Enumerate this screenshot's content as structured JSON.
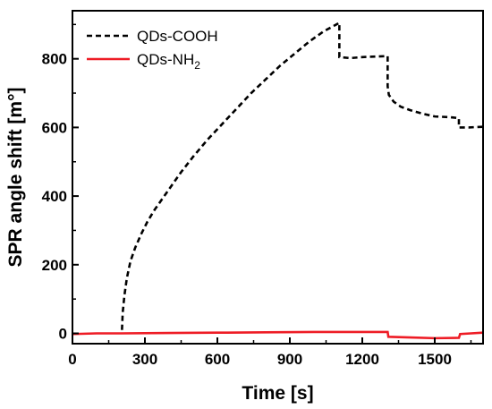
{
  "chart_data": {
    "type": "line",
    "title": "",
    "xlabel": "Time [s]",
    "ylabel": "SPR angle shift [m°]",
    "xlim": [
      0,
      1700
    ],
    "ylim": [
      -30,
      940
    ],
    "x_ticks": [
      0,
      300,
      600,
      900,
      1200,
      1500
    ],
    "y_ticks": [
      0,
      200,
      400,
      600,
      800
    ],
    "grid": false,
    "legend_position": "top-left",
    "series": [
      {
        "name": "QDs-COOH",
        "color": "#000000",
        "style": "dashed",
        "x": [
          205,
          208,
          215,
          225,
          240,
          260,
          285,
          310,
          340,
          375,
          410,
          450,
          500,
          560,
          620,
          680,
          740,
          800,
          860,
          920,
          980,
          1040,
          1080,
          1105,
          1105,
          1150,
          1200,
          1305,
          1305,
          1310,
          1330,
          1360,
          1400,
          1450,
          1500,
          1560,
          1600,
          1600,
          1640,
          1700
        ],
        "y": [
          10,
          60,
          110,
          160,
          210,
          250,
          290,
          325,
          360,
          395,
          430,
          470,
          515,
          565,
          610,
          655,
          700,
          740,
          780,
          815,
          850,
          880,
          895,
          905,
          805,
          802,
          805,
          808,
          720,
          695,
          675,
          660,
          650,
          640,
          632,
          630,
          627,
          600,
          600,
          602
        ]
      },
      {
        "name": "QDs-NH2",
        "legend_label": "QDs-NH",
        "legend_subscript": "2",
        "color": "#ee1c25",
        "style": "solid",
        "x": [
          0,
          100,
          200,
          400,
          600,
          800,
          1000,
          1200,
          1305,
          1308,
          1400,
          1500,
          1600,
          1605,
          1650,
          1700
        ],
        "y": [
          -2,
          0,
          0,
          1,
          2,
          3,
          4,
          4,
          4,
          -10,
          -12,
          -14,
          -13,
          -2,
          0,
          2
        ]
      }
    ]
  }
}
